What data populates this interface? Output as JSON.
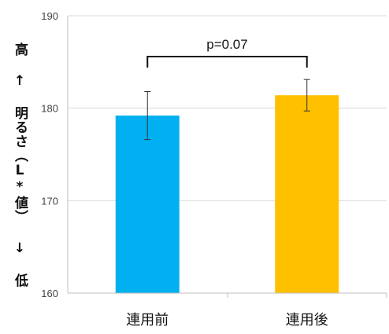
{
  "chart_data": {
    "type": "bar",
    "categories": [
      "連用前",
      "連用後"
    ],
    "values": [
      179.2,
      181.4
    ],
    "error_bars": [
      {
        "low": 176.6,
        "high": 181.8
      },
      {
        "low": 179.7,
        "high": 183.1
      }
    ],
    "colors": [
      "#00B0F0",
      "#FFC000"
    ],
    "ylabel": "高 ↑ 明るさ（L*値） ↓ 低",
    "ylim": [
      160,
      190
    ],
    "yticks": [
      160,
      170,
      180,
      190
    ],
    "grid": true,
    "annotation": "p=0.07"
  }
}
